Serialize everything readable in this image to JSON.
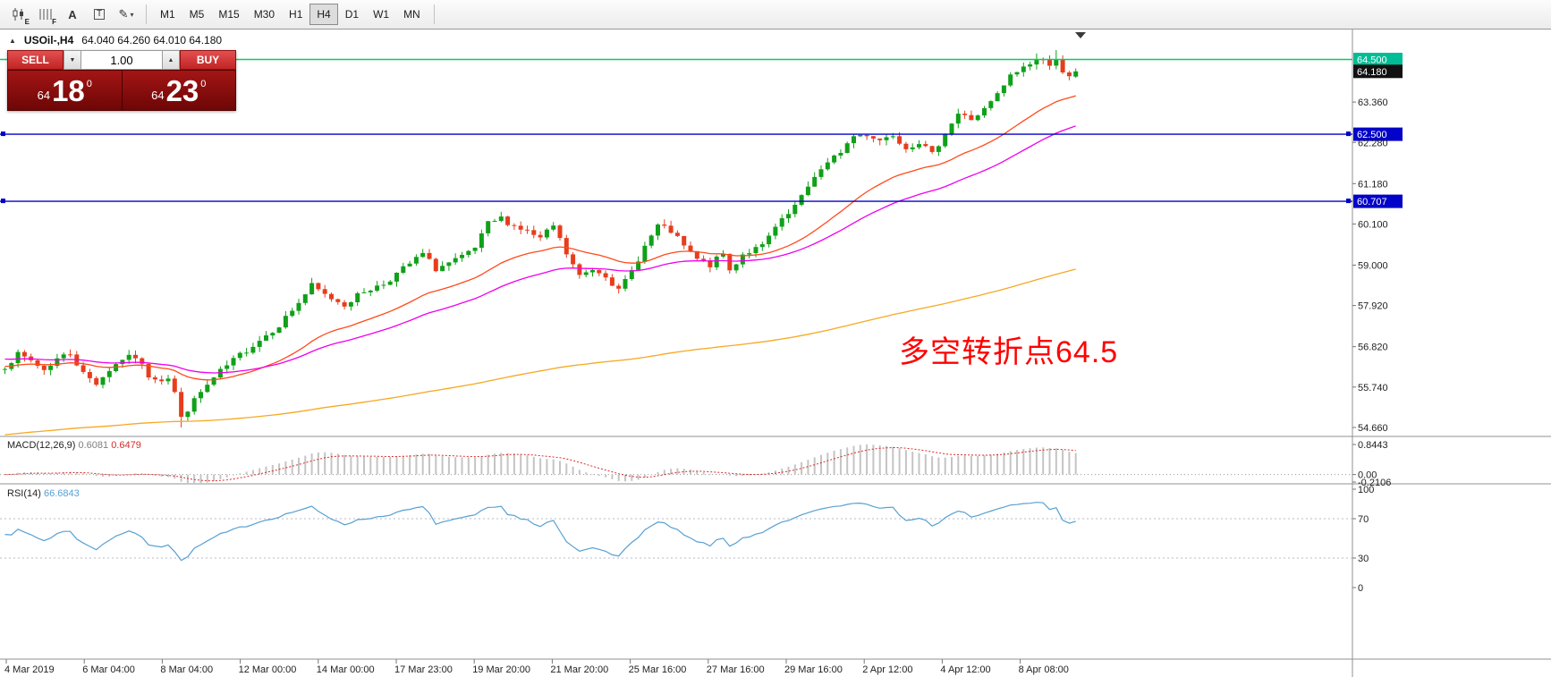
{
  "toolbar": {
    "icons": [
      {
        "name": "candlestick-tool-icon",
        "glyph": "E"
      },
      {
        "name": "lines-tool-icon",
        "glyph": "F"
      },
      {
        "name": "text-label-tool-icon",
        "glyph": "A"
      },
      {
        "name": "text-box-tool-icon",
        "glyph": "T"
      },
      {
        "name": "drawing-tool-icon",
        "glyph": "✎"
      }
    ],
    "timeframes": [
      "M1",
      "M5",
      "M15",
      "M30",
      "H1",
      "H4",
      "D1",
      "W1",
      "MN"
    ],
    "active_timeframe": "H4"
  },
  "icons": {
    "volume_down": "▼",
    "volume_up": "▲",
    "one_click_toggle": "▲",
    "dropdown": "▾"
  },
  "chart_header": {
    "symbol": "USOil-,H4",
    "ohlc": "64.040 64.260 64.010 64.180"
  },
  "trade_panel": {
    "sell_label": "SELL",
    "buy_label": "BUY",
    "volume": "1.00",
    "sell_price": {
      "small": "64",
      "big": "18",
      "sup": "0"
    },
    "buy_price": {
      "small": "64",
      "big": "23",
      "sup": "0"
    }
  },
  "annotation": {
    "text": "多空转折点64.5",
    "color": "#ff0000"
  },
  "chart_data": {
    "type": "candlestick",
    "symbol": "USOil",
    "timeframe": "H4",
    "bars": 165,
    "up_color": "#10a019",
    "down_color": "#e73d1d",
    "last_ohlc": {
      "open": 64.04,
      "high": 64.26,
      "low": 64.01,
      "close": 64.18
    },
    "price_anchors": [
      [
        0,
        56.3
      ],
      [
        2,
        56.6
      ],
      [
        4,
        56.45
      ],
      [
        6,
        56.2
      ],
      [
        8,
        56.5
      ],
      [
        10,
        56.65
      ],
      [
        12,
        56.1
      ],
      [
        14,
        55.85
      ],
      [
        16,
        56.2
      ],
      [
        18,
        56.5
      ],
      [
        20,
        56.55
      ],
      [
        22,
        56.05
      ],
      [
        24,
        55.95
      ],
      [
        25,
        56.0
      ],
      [
        26,
        55.6
      ],
      [
        27,
        54.9
      ],
      [
        28,
        55.15
      ],
      [
        30,
        55.6
      ],
      [
        33,
        56.15
      ],
      [
        36,
        56.6
      ],
      [
        39,
        57.0
      ],
      [
        42,
        57.4
      ],
      [
        45,
        58.0
      ],
      [
        47,
        58.45
      ],
      [
        49,
        58.2
      ],
      [
        52,
        57.95
      ],
      [
        55,
        58.3
      ],
      [
        58,
        58.5
      ],
      [
        61,
        58.9
      ],
      [
        64,
        59.3
      ],
      [
        66,
        58.9
      ],
      [
        68,
        59.05
      ],
      [
        70,
        59.2
      ],
      [
        72,
        59.45
      ],
      [
        74,
        60.1
      ],
      [
        76,
        60.25
      ],
      [
        78,
        60.05
      ],
      [
        80,
        59.9
      ],
      [
        82,
        59.7
      ],
      [
        84,
        60.05
      ],
      [
        86,
        59.3
      ],
      [
        88,
        58.7
      ],
      [
        90,
        58.9
      ],
      [
        92,
        58.75
      ],
      [
        94,
        58.3
      ],
      [
        96,
        58.85
      ],
      [
        98,
        59.5
      ],
      [
        100,
        60.05
      ],
      [
        102,
        59.9
      ],
      [
        104,
        59.5
      ],
      [
        106,
        59.15
      ],
      [
        108,
        59.0
      ],
      [
        110,
        59.3
      ],
      [
        111,
        58.85
      ],
      [
        113,
        59.3
      ],
      [
        116,
        59.5
      ],
      [
        118,
        60.0
      ],
      [
        120,
        60.35
      ],
      [
        122,
        60.8
      ],
      [
        124,
        61.4
      ],
      [
        126,
        61.7
      ],
      [
        128,
        62.05
      ],
      [
        130,
        62.45
      ],
      [
        132,
        62.5
      ],
      [
        134,
        62.35
      ],
      [
        136,
        62.5
      ],
      [
        138,
        62.15
      ],
      [
        140,
        62.3
      ],
      [
        142,
        61.95
      ],
      [
        144,
        62.55
      ],
      [
        146,
        63.05
      ],
      [
        148,
        62.9
      ],
      [
        150,
        63.15
      ],
      [
        152,
        63.55
      ],
      [
        154,
        64.05
      ],
      [
        156,
        64.3
      ],
      [
        158,
        64.5
      ],
      [
        160,
        64.4
      ],
      [
        161,
        64.55
      ],
      [
        162,
        64.1
      ],
      [
        163,
        64.0
      ],
      [
        164,
        64.18
      ]
    ],
    "candle_overrides": {
      "27": {
        "low": 54.66
      },
      "158": {
        "high": 64.66
      },
      "161": {
        "high": 64.75
      },
      "164": {
        "open": 64.04,
        "high": 64.26,
        "low": 64.01,
        "close": 64.18
      }
    },
    "y_axis": {
      "min": 54.42,
      "max": 65.3,
      "labels": [
        {
          "value": 64.5,
          "text": "64.500",
          "tag": "#00bd95"
        },
        {
          "value": 64.18,
          "text": "64.180",
          "tag": "#111111"
        },
        {
          "value": 63.36,
          "text": "63.360"
        },
        {
          "value": 62.5,
          "text": "62.500",
          "tag": "#0202c8"
        },
        {
          "value": 62.28,
          "text": "62.280"
        },
        {
          "value": 61.18,
          "text": "61.180"
        },
        {
          "value": 60.707,
          "text": "60.707",
          "tag": "#0202c8"
        },
        {
          "value": 60.1,
          "text": "60.100"
        },
        {
          "value": 59.0,
          "text": "59.000"
        },
        {
          "value": 57.92,
          "text": "57.920"
        },
        {
          "value": 56.82,
          "text": "56.820"
        },
        {
          "value": 55.74,
          "text": "55.740"
        },
        {
          "value": 54.66,
          "text": "54.660"
        }
      ]
    },
    "horizontal_lines": [
      {
        "price": 64.5,
        "color": "#00cf66",
        "handles": false
      },
      {
        "price": 62.5,
        "color": "#0202c8",
        "handles": true
      },
      {
        "price": 60.707,
        "color": "#0202c8",
        "handles": true
      }
    ],
    "moving_averages": [
      {
        "name": "ma-fast",
        "color": "#ff4a1a",
        "alpha": 0.075,
        "seed": 56.3
      },
      {
        "name": "ma-medium",
        "color": "#ee00ee",
        "alpha": 0.042,
        "seed": 56.5
      },
      {
        "name": "ma-slow",
        "color": "#f7a823",
        "alpha": 0.0085,
        "seed": 54.45
      }
    ],
    "x_axis": [
      "4 Mar 2019",
      "6 Mar 04:00",
      "8 Mar 04:00",
      "12 Mar 00:00",
      "14 Mar 00:00",
      "17 Mar 23:00",
      "19 Mar 20:00",
      "21 Mar 20:00",
      "25 Mar 16:00",
      "27 Mar 16:00",
      "29 Mar 16:00",
      "2 Apr 12:00",
      "4 Apr 12:00",
      "8 Apr 08:00"
    ],
    "macd": {
      "name_label": "MACD(12,26,9)",
      "value_main": "0.6081",
      "value_signal": "0.6479",
      "fast": 12,
      "slow": 26,
      "signal": 9,
      "max": 0.8443,
      "min": -0.2106,
      "axis_labels": [
        "0.8443",
        "0.00",
        "-0.2106"
      ],
      "histogram_color": "#c4c4c4",
      "signal_color": "#d92b2b"
    },
    "rsi": {
      "name_label": "RSI(14)",
      "value": "66.6843",
      "period": 14,
      "axis_labels": [
        100,
        70,
        30,
        0
      ],
      "levels": [
        70,
        30
      ],
      "line_color": "#56a0d3"
    }
  }
}
